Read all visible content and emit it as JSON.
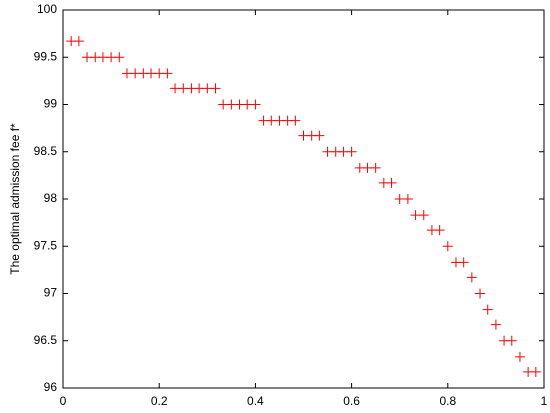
{
  "chart_data": {
    "type": "scatter",
    "ylabel": "The optimal admission fee f*",
    "marker": "+",
    "color": "#ff0000",
    "x": [
      0.017,
      0.033,
      0.05,
      0.067,
      0.083,
      0.1,
      0.117,
      0.133,
      0.15,
      0.167,
      0.183,
      0.2,
      0.217,
      0.233,
      0.25,
      0.267,
      0.283,
      0.3,
      0.317,
      0.333,
      0.35,
      0.367,
      0.383,
      0.4,
      0.417,
      0.433,
      0.45,
      0.467,
      0.483,
      0.5,
      0.517,
      0.533,
      0.55,
      0.567,
      0.583,
      0.6,
      0.617,
      0.633,
      0.65,
      0.667,
      0.683,
      0.7,
      0.717,
      0.733,
      0.75,
      0.767,
      0.783,
      0.8,
      0.817,
      0.833,
      0.85,
      0.867,
      0.883,
      0.9,
      0.917,
      0.933,
      0.95,
      0.967,
      0.983
    ],
    "values": [
      99.67,
      99.67,
      99.5,
      99.5,
      99.5,
      99.5,
      99.5,
      99.33,
      99.33,
      99.33,
      99.33,
      99.33,
      99.33,
      99.17,
      99.17,
      99.17,
      99.17,
      99.17,
      99.17,
      99,
      99,
      99,
      99,
      99,
      98.83,
      98.83,
      98.83,
      98.83,
      98.83,
      98.67,
      98.67,
      98.67,
      98.5,
      98.5,
      98.5,
      98.5,
      98.33,
      98.33,
      98.33,
      98.17,
      98.17,
      98,
      98,
      97.83,
      97.83,
      97.67,
      97.67,
      97.5,
      97.33,
      97.33,
      97.17,
      97,
      96.83,
      96.67,
      96.5,
      96.5,
      96.33,
      96.17,
      96.17
    ],
    "xlim": [
      0,
      1
    ],
    "xticks": [
      0,
      0.2,
      0.4,
      0.6,
      0.8,
      1
    ],
    "ylim": [
      96,
      100
    ],
    "yticks": [
      96,
      96.5,
      97,
      97.5,
      98,
      98.5,
      99,
      99.5,
      100
    ],
    "grid": false
  }
}
